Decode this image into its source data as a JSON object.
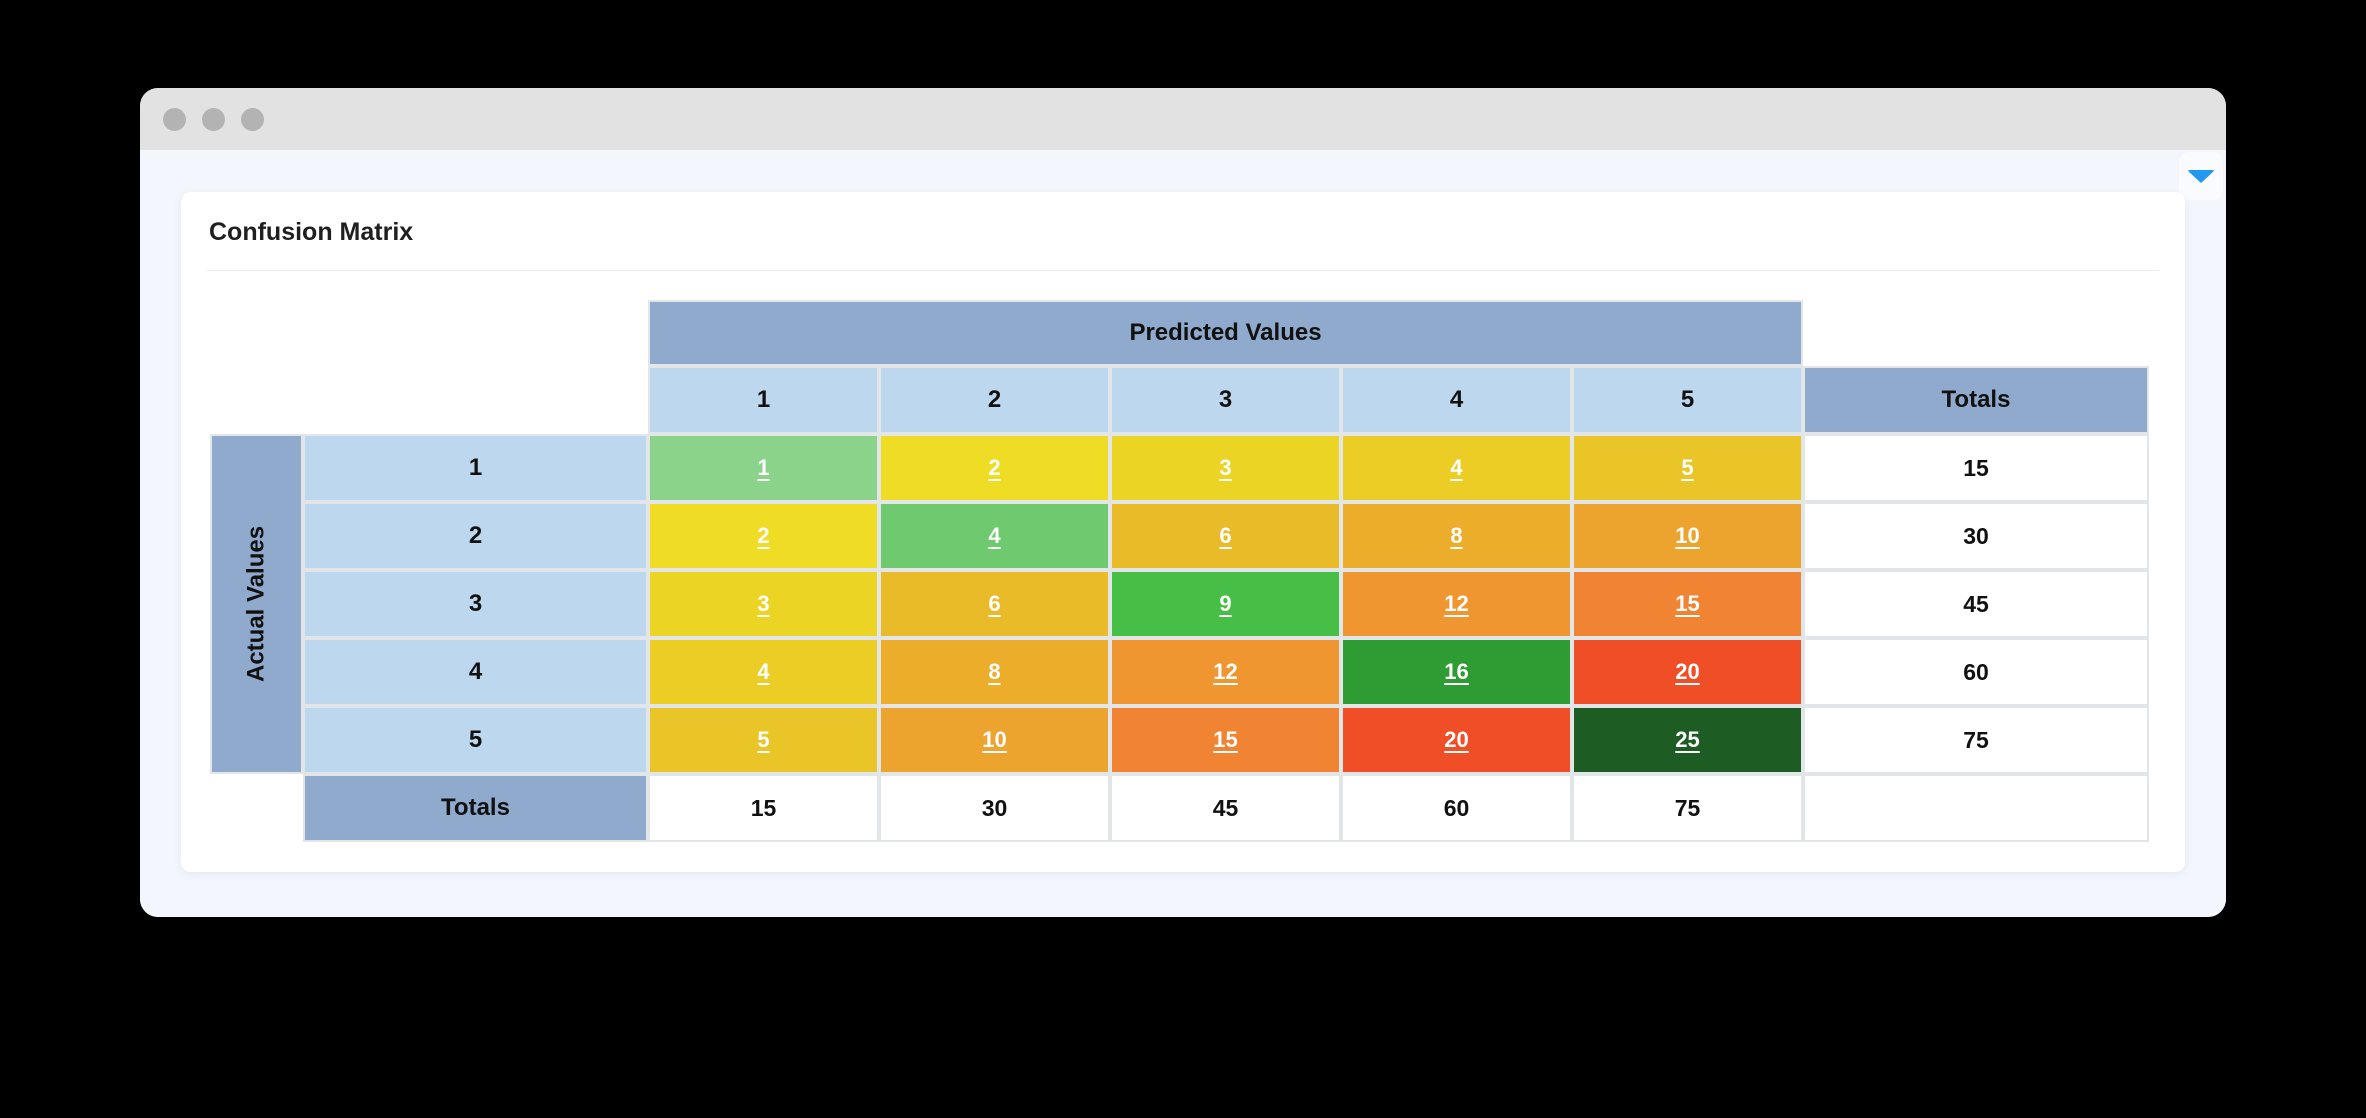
{
  "header": {
    "title": "Confusion Matrix"
  },
  "controls": {
    "collapse_button": "chevron-down"
  },
  "colors": {
    "page_bg": "#000000",
    "titlebar_bg": "#E2E2E2",
    "titlebar_dot": "#B3B3B3",
    "window_bg": "#F3F6FD",
    "card_bg": "#FFFFFF",
    "header_blue": "#8FAACD",
    "header_light_blue": "#BDD7EE",
    "grid_line": "#E3E6E9",
    "caret_blue": "#2298F1"
  },
  "matrix": {
    "predicted_label": "Predicted Values",
    "actual_label": "Actual Values",
    "totals_label": "Totals",
    "col_headers": [
      "1",
      "2",
      "3",
      "4",
      "5"
    ],
    "rows": [
      {
        "header": "1",
        "cells": [
          {
            "value": "1",
            "bg": "#8BD28B"
          },
          {
            "value": "2",
            "bg": "#EEDC25"
          },
          {
            "value": "3",
            "bg": "#ECD425"
          },
          {
            "value": "4",
            "bg": "#EBCD26"
          },
          {
            "value": "5",
            "bg": "#EAC527"
          }
        ],
        "total": "15"
      },
      {
        "header": "2",
        "cells": [
          {
            "value": "2",
            "bg": "#EEDC25"
          },
          {
            "value": "4",
            "bg": "#6EC96F"
          },
          {
            "value": "6",
            "bg": "#EABB28"
          },
          {
            "value": "8",
            "bg": "#ECAD2B"
          },
          {
            "value": "10",
            "bg": "#EDA42E"
          }
        ],
        "total": "30"
      },
      {
        "header": "3",
        "cells": [
          {
            "value": "3",
            "bg": "#ECD425"
          },
          {
            "value": "6",
            "bg": "#EABB28"
          },
          {
            "value": "9",
            "bg": "#47BF47"
          },
          {
            "value": "12",
            "bg": "#EF9630"
          },
          {
            "value": "15",
            "bg": "#F08433"
          }
        ],
        "total": "45"
      },
      {
        "header": "4",
        "cells": [
          {
            "value": "4",
            "bg": "#EBCD26"
          },
          {
            "value": "8",
            "bg": "#ECAD2B"
          },
          {
            "value": "12",
            "bg": "#EF9630"
          },
          {
            "value": "16",
            "bg": "#2E9B33"
          },
          {
            "value": "20",
            "bg": "#EF4E27"
          }
        ],
        "total": "60"
      },
      {
        "header": "5",
        "cells": [
          {
            "value": "5",
            "bg": "#EAC527"
          },
          {
            "value": "10",
            "bg": "#EDA42E"
          },
          {
            "value": "15",
            "bg": "#F08433"
          },
          {
            "value": "20",
            "bg": "#EF4E27"
          },
          {
            "value": "25",
            "bg": "#1D5C22"
          }
        ],
        "total": "75"
      }
    ],
    "col_totals": [
      "15",
      "30",
      "45",
      "60",
      "75"
    ]
  },
  "chart_data": {
    "type": "heatmap",
    "title": "Confusion Matrix",
    "xlabel": "Predicted Values",
    "ylabel": "Actual Values",
    "x_categories": [
      "1",
      "2",
      "3",
      "4",
      "5"
    ],
    "y_categories": [
      "1",
      "2",
      "3",
      "4",
      "5"
    ],
    "values": [
      [
        1,
        2,
        3,
        4,
        5
      ],
      [
        2,
        4,
        6,
        8,
        10
      ],
      [
        3,
        6,
        9,
        12,
        15
      ],
      [
        4,
        8,
        12,
        16,
        20
      ],
      [
        5,
        10,
        15,
        20,
        25
      ]
    ],
    "row_totals": [
      15,
      30,
      45,
      60,
      75
    ],
    "col_totals": [
      15,
      30,
      45,
      60,
      75
    ],
    "diagonal_color_scale": "light-green (low) to dark-green (high)",
    "off_diagonal_color_scale": "yellow (low) to orange to red (high)"
  }
}
